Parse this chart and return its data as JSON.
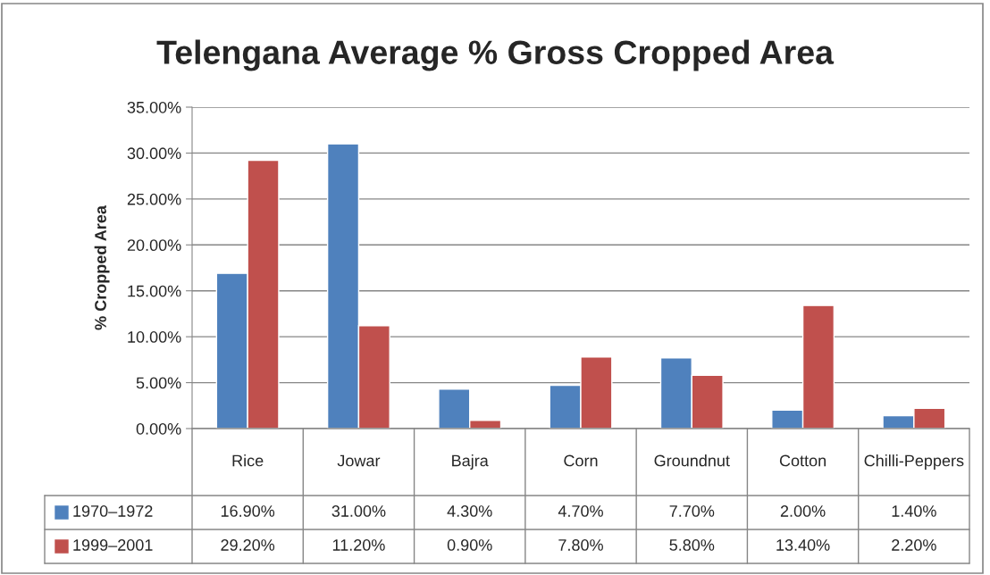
{
  "chart_data": {
    "type": "bar",
    "title": "Telengana Average % Gross Cropped Area",
    "ylabel": "% Cropped Area",
    "categories": [
      "Rice",
      "Jowar",
      "Bajra",
      "Corn",
      "Groundnut",
      "Cotton",
      "Chilli-Peppers"
    ],
    "series": [
      {
        "name": "1970–1972",
        "color": "#4f81bd",
        "values": [
          16.9,
          31.0,
          4.3,
          4.7,
          7.7,
          2.0,
          1.4
        ],
        "value_labels": [
          "16.90%",
          "31.00%",
          "4.30%",
          "4.70%",
          "7.70%",
          "2.00%",
          "1.40%"
        ]
      },
      {
        "name": "1999–2001",
        "color": "#c0504d",
        "values": [
          29.2,
          11.2,
          0.9,
          7.8,
          5.8,
          13.4,
          2.2
        ],
        "value_labels": [
          "29.20%",
          "11.20%",
          "0.90%",
          "7.80%",
          "5.80%",
          "13.40%",
          "2.20%"
        ]
      }
    ],
    "ylim": [
      0,
      35
    ],
    "yticks": [
      {
        "value": 0,
        "label": "0.00%"
      },
      {
        "value": 5,
        "label": "5.00%"
      },
      {
        "value": 10,
        "label": "10.00%"
      },
      {
        "value": 15,
        "label": "15.00%"
      },
      {
        "value": 20,
        "label": "20.00%"
      },
      {
        "value": 25,
        "label": "25.00%"
      },
      {
        "value": 30,
        "label": "30.00%"
      },
      {
        "value": 35,
        "label": "35.00%"
      }
    ],
    "grid": "y",
    "legend": "bottom left"
  }
}
